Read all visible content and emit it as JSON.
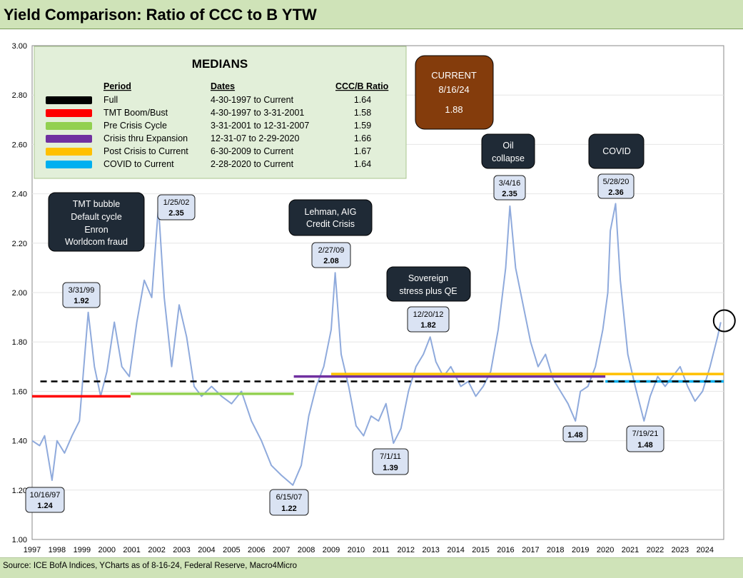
{
  "title": "Yield Comparison: Ratio of CCC to B YTW",
  "source": "Source: ICE BofA Indices, YCharts as of 8-16-24, Federal Reserve, Macro4Micro",
  "chart_data": {
    "type": "line",
    "title": "Yield Comparison: Ratio of CCC to B YTW",
    "xlabel": "",
    "ylabel": "",
    "xlim": [
      1997.0,
      2024.75
    ],
    "ylim": [
      1.0,
      3.0
    ],
    "y_ticks": [
      "1.00",
      "1.20",
      "1.40",
      "1.60",
      "1.80",
      "2.00",
      "2.20",
      "2.40",
      "2.60",
      "2.80",
      "3.00"
    ],
    "x_ticks": [
      "1997",
      "1998",
      "1999",
      "2000",
      "2001",
      "2002",
      "2003",
      "2004",
      "2005",
      "2006",
      "2007",
      "2008",
      "2009",
      "2010",
      "2011",
      "2012",
      "2013",
      "2014",
      "2015",
      "2016",
      "2017",
      "2018",
      "2019",
      "2020",
      "2021",
      "2022",
      "2023",
      "2024"
    ],
    "series": [
      {
        "name": "CCC/B Ratio",
        "color": "#8faadc",
        "points": [
          [
            1997.0,
            1.4
          ],
          [
            1997.3,
            1.38
          ],
          [
            1997.5,
            1.42
          ],
          [
            1997.8,
            1.24
          ],
          [
            1998.0,
            1.4
          ],
          [
            1998.3,
            1.35
          ],
          [
            1998.6,
            1.42
          ],
          [
            1998.9,
            1.48
          ],
          [
            1999.25,
            1.92
          ],
          [
            1999.5,
            1.7
          ],
          [
            1999.75,
            1.58
          ],
          [
            2000.0,
            1.68
          ],
          [
            2000.3,
            1.88
          ],
          [
            2000.6,
            1.7
          ],
          [
            2000.9,
            1.66
          ],
          [
            2001.2,
            1.88
          ],
          [
            2001.5,
            2.05
          ],
          [
            2001.8,
            1.98
          ],
          [
            2002.07,
            2.35
          ],
          [
            2002.3,
            1.98
          ],
          [
            2002.6,
            1.7
          ],
          [
            2002.9,
            1.95
          ],
          [
            2003.2,
            1.82
          ],
          [
            2003.5,
            1.62
          ],
          [
            2003.8,
            1.58
          ],
          [
            2004.2,
            1.62
          ],
          [
            2004.6,
            1.58
          ],
          [
            2005.0,
            1.55
          ],
          [
            2005.4,
            1.6
          ],
          [
            2005.8,
            1.48
          ],
          [
            2006.2,
            1.4
          ],
          [
            2006.6,
            1.3
          ],
          [
            2007.0,
            1.26
          ],
          [
            2007.46,
            1.22
          ],
          [
            2007.8,
            1.3
          ],
          [
            2008.1,
            1.5
          ],
          [
            2008.4,
            1.62
          ],
          [
            2008.7,
            1.7
          ],
          [
            2009.0,
            1.85
          ],
          [
            2009.16,
            2.08
          ],
          [
            2009.4,
            1.75
          ],
          [
            2009.7,
            1.62
          ],
          [
            2010.0,
            1.46
          ],
          [
            2010.3,
            1.42
          ],
          [
            2010.6,
            1.5
          ],
          [
            2010.9,
            1.48
          ],
          [
            2011.2,
            1.55
          ],
          [
            2011.5,
            1.39
          ],
          [
            2011.8,
            1.45
          ],
          [
            2012.1,
            1.6
          ],
          [
            2012.4,
            1.7
          ],
          [
            2012.7,
            1.75
          ],
          [
            2012.97,
            1.82
          ],
          [
            2013.2,
            1.72
          ],
          [
            2013.5,
            1.66
          ],
          [
            2013.8,
            1.7
          ],
          [
            2014.2,
            1.62
          ],
          [
            2014.5,
            1.64
          ],
          [
            2014.8,
            1.58
          ],
          [
            2015.1,
            1.62
          ],
          [
            2015.4,
            1.68
          ],
          [
            2015.7,
            1.85
          ],
          [
            2016.0,
            2.1
          ],
          [
            2016.17,
            2.35
          ],
          [
            2016.4,
            2.1
          ],
          [
            2016.7,
            1.95
          ],
          [
            2017.0,
            1.8
          ],
          [
            2017.3,
            1.7
          ],
          [
            2017.6,
            1.75
          ],
          [
            2017.9,
            1.65
          ],
          [
            2018.2,
            1.6
          ],
          [
            2018.5,
            1.55
          ],
          [
            2018.8,
            1.48
          ],
          [
            2019.0,
            1.6
          ],
          [
            2019.3,
            1.62
          ],
          [
            2019.6,
            1.7
          ],
          [
            2019.9,
            1.85
          ],
          [
            2020.1,
            2.0
          ],
          [
            2020.2,
            2.25
          ],
          [
            2020.41,
            2.36
          ],
          [
            2020.6,
            2.05
          ],
          [
            2020.9,
            1.75
          ],
          [
            2021.2,
            1.62
          ],
          [
            2021.55,
            1.48
          ],
          [
            2021.8,
            1.58
          ],
          [
            2022.1,
            1.66
          ],
          [
            2022.4,
            1.62
          ],
          [
            2022.7,
            1.66
          ],
          [
            2023.0,
            1.7
          ],
          [
            2023.3,
            1.62
          ],
          [
            2023.6,
            1.56
          ],
          [
            2023.9,
            1.6
          ],
          [
            2024.2,
            1.7
          ],
          [
            2024.5,
            1.82
          ],
          [
            2024.63,
            1.88
          ]
        ]
      }
    ],
    "medians": {
      "heading": "MEDIANS",
      "headers": [
        "Period",
        "Dates",
        "CCC/B Ratio"
      ],
      "rows": [
        {
          "period": "Full",
          "dates": "4-30-1997 to Current",
          "ratio": "1.64",
          "value": 1.64,
          "color": "#000000",
          "x_start": 1997.33,
          "x_end": 2024.75,
          "dashed": true
        },
        {
          "period": "TMT Boom/Bust",
          "dates": "4-30-1997 to 3-31-2001",
          "ratio": "1.58",
          "value": 1.58,
          "color": "#ff0000",
          "x_start": 1997.0,
          "x_end": 2000.95,
          "dashed": false
        },
        {
          "period": "Pre Crisis Cycle",
          "dates": "3-31-2001 to 12-31-2007",
          "ratio": "1.59",
          "value": 1.59,
          "color": "#92d050",
          "x_start": 2000.95,
          "x_end": 2007.5,
          "dashed": false
        },
        {
          "period": "Crisis thru Expansion",
          "dates": "12-31-07 to 2-29-2020",
          "ratio": "1.66",
          "value": 1.66,
          "color": "#7030a0",
          "x_start": 2007.5,
          "x_end": 2020.0,
          "dashed": false
        },
        {
          "period": "Post Crisis to Current",
          "dates": "6-30-2009 to Current",
          "ratio": "1.67",
          "value": 1.67,
          "color": "#ffc000",
          "x_start": 2009.0,
          "x_end": 2024.75,
          "dashed": false
        },
        {
          "period": "COVID to Current",
          "dates": "2-28-2020 to Current",
          "ratio": "1.64",
          "value": 1.64,
          "color": "#00b0f0",
          "x_start": 2020.0,
          "x_end": 2024.75,
          "dashed": false
        }
      ]
    },
    "current": {
      "label": "CURRENT",
      "date": "8/16/24",
      "value": "1.88"
    },
    "point_labels": [
      {
        "date": "10/16/97",
        "value": "1.24"
      },
      {
        "date": "3/31/99",
        "value": "1.92"
      },
      {
        "date": "1/25/02",
        "value": "2.35"
      },
      {
        "date": "6/15/07",
        "value": "1.22"
      },
      {
        "date": "2/27/09",
        "value": "2.08"
      },
      {
        "date": "7/1/11",
        "value": "1.39"
      },
      {
        "date": "12/20/12",
        "value": "1.82"
      },
      {
        "date": "3/4/16",
        "value": "2.35"
      },
      {
        "date": "",
        "value": "1.48"
      },
      {
        "date": "5/28/20",
        "value": "2.36"
      },
      {
        "date": "7/19/21",
        "value": "1.48"
      }
    ],
    "annotations": [
      {
        "lines": [
          "TMT bubble",
          "Default cycle",
          "Enron",
          "Worldcom fraud"
        ]
      },
      {
        "lines": [
          "Lehman, AIG",
          "Credit Crisis"
        ]
      },
      {
        "lines": [
          "Sovereign",
          "stress plus QE"
        ]
      },
      {
        "lines": [
          "Oil",
          "collapse"
        ]
      },
      {
        "lines": [
          "COVID"
        ]
      }
    ]
  }
}
